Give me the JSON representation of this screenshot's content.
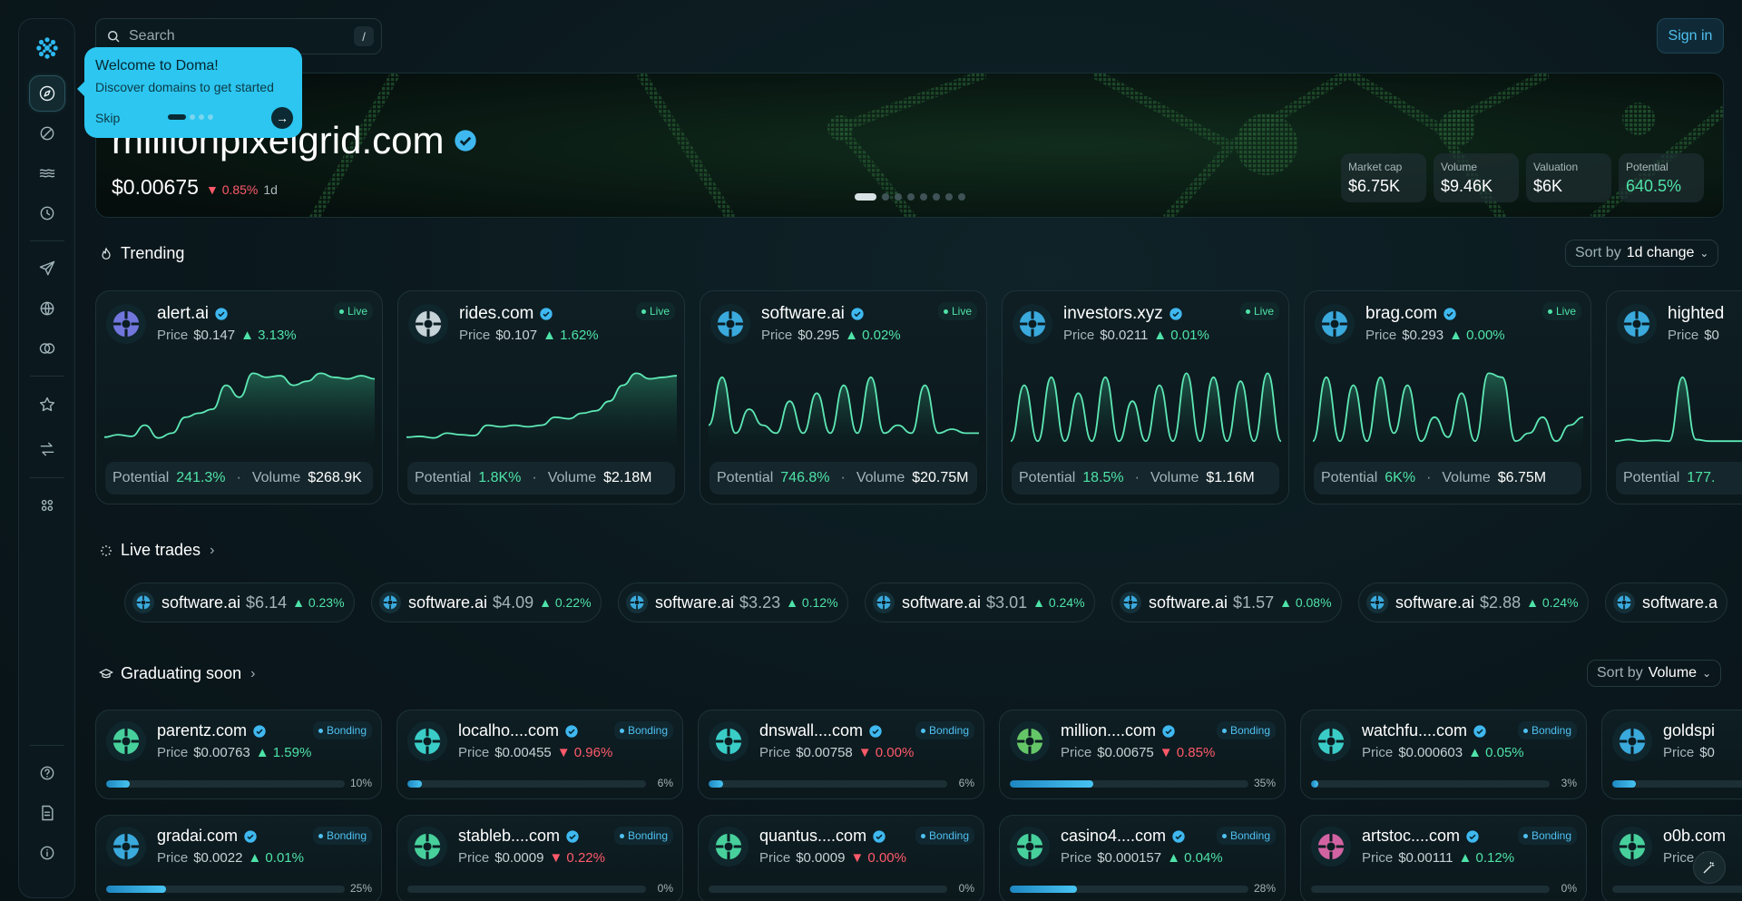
{
  "search": {
    "placeholder": "Search",
    "shortcut": "/"
  },
  "auth": {
    "signin_label": "Sign in"
  },
  "sidebar": {
    "items": [
      {
        "icon": "logo-icon"
      },
      {
        "icon": "explore-icon",
        "active": true
      },
      {
        "icon": "slash-circle-icon"
      },
      {
        "icon": "waves-icon"
      },
      {
        "icon": "clock-icon"
      },
      {
        "icon": "paper-plane-icon"
      },
      {
        "icon": "globe-icon"
      },
      {
        "icon": "coins-icon"
      },
      {
        "icon": "star-icon"
      },
      {
        "icon": "swap-icon"
      },
      {
        "icon": "apps-icon"
      },
      {
        "icon": "help-icon"
      },
      {
        "icon": "document-icon"
      },
      {
        "icon": "info-icon"
      }
    ]
  },
  "onboarding": {
    "title": "Welcome to Doma!",
    "subtitle": "Discover domains to get started",
    "skip_label": "Skip",
    "next_icon": "arrow-right-icon"
  },
  "hero": {
    "domain": "millionpixelgrid.com",
    "price": "$0.00675",
    "change": "0.85%",
    "period": "1d",
    "stats": [
      {
        "label": "Market cap",
        "value": "$6.75K"
      },
      {
        "label": "Volume",
        "value": "$9.46K"
      },
      {
        "label": "Valuation",
        "value": "$6K"
      },
      {
        "label": "Potential",
        "value": "640.5%"
      }
    ]
  },
  "trending": {
    "title": "Trending",
    "sort_prefix": "Sort by",
    "sort_value": "1d change",
    "cards": [
      {
        "name": "alert.ai",
        "price_label": "Price",
        "price": "$0.147",
        "change": "3.13%",
        "badge": "Live",
        "potential_label": "Potential",
        "potential": "241.3%",
        "volume_label": "Volume",
        "volume": "$268.9K",
        "color": "#7b7ff0"
      },
      {
        "name": "rides.com",
        "price_label": "Price",
        "price": "$0.107",
        "change": "1.62%",
        "badge": "Live",
        "potential_label": "Potential",
        "potential": "1.8K%",
        "volume_label": "Volume",
        "volume": "$2.18M",
        "color": "#d9e6ea"
      },
      {
        "name": "software.ai",
        "price_label": "Price",
        "price": "$0.295",
        "change": "0.02%",
        "badge": "Live",
        "potential_label": "Potential",
        "potential": "746.8%",
        "volume_label": "Volume",
        "volume": "$20.75M",
        "color": "#3fb8f0"
      },
      {
        "name": "investors.xyz",
        "price_label": "Price",
        "price": "$0.0211",
        "change": "0.01%",
        "badge": "Live",
        "potential_label": "Potential",
        "potential": "18.5%",
        "volume_label": "Volume",
        "volume": "$1.16M",
        "color": "#3fb8f0"
      },
      {
        "name": "brag.com",
        "price_label": "Price",
        "price": "$0.293",
        "change": "0.00%",
        "badge": "Live",
        "potential_label": "Potential",
        "potential": "6K%",
        "volume_label": "Volume",
        "volume": "$6.75M",
        "color": "#3fb8f0"
      },
      {
        "name": "highted",
        "price_label": "Price",
        "price": "$0",
        "change": "",
        "badge": "",
        "potential_label": "Potential",
        "potential": "177.",
        "volume_label": "",
        "volume": "",
        "color": "#3fb8f0"
      }
    ]
  },
  "live_trades": {
    "title": "Live trades",
    "items": [
      {
        "name": "software.ai",
        "price": "$6.14",
        "change": "0.23%"
      },
      {
        "name": "software.ai",
        "price": "$4.09",
        "change": "0.22%"
      },
      {
        "name": "software.ai",
        "price": "$3.23",
        "change": "0.12%"
      },
      {
        "name": "software.ai",
        "price": "$3.01",
        "change": "0.24%"
      },
      {
        "name": "software.ai",
        "price": "$1.57",
        "change": "0.08%"
      },
      {
        "name": "software.ai",
        "price": "$2.88",
        "change": "0.24%"
      },
      {
        "name": "software.a",
        "price": "",
        "change": ""
      }
    ]
  },
  "graduating": {
    "title": "Graduating soon",
    "sort_prefix": "Sort by",
    "sort_value": "Volume",
    "cards": [
      {
        "name": "parentz.com",
        "price": "$0.00763",
        "change": "1.59%",
        "dir": "up",
        "progress_text": "10%",
        "progress": 0.1,
        "color": "#4ee3a8"
      },
      {
        "name": "localho....com",
        "price": "$0.00455",
        "change": "0.96%",
        "dir": "down",
        "progress_text": "6%",
        "progress": 0.06,
        "color": "#3fe0d8"
      },
      {
        "name": "dnswall....com",
        "price": "$0.00758",
        "change": "0.00%",
        "dir": "down",
        "progress_text": "6%",
        "progress": 0.06,
        "color": "#3fe0d8"
      },
      {
        "name": "million....com",
        "price": "$0.00675",
        "change": "0.85%",
        "dir": "down",
        "progress_text": "35%",
        "progress": 0.35,
        "color": "#6fd86f"
      },
      {
        "name": "watchfu....com",
        "price": "$0.000603",
        "change": "0.05%",
        "dir": "up",
        "progress_text": "3%",
        "progress": 0.03,
        "color": "#3fe0d8"
      },
      {
        "name": "goldspi",
        "price": "$0",
        "change": "",
        "dir": "up",
        "progress_text": "",
        "progress": 0.1,
        "color": "#3fb8f0"
      },
      {
        "name": "gradai.com",
        "price": "$0.0022",
        "change": "0.01%",
        "dir": "up",
        "progress_text": "25%",
        "progress": 0.25,
        "color": "#3fb8f0"
      },
      {
        "name": "stableb....com",
        "price": "$0.0009",
        "change": "0.22%",
        "dir": "down",
        "progress_text": "0%",
        "progress": 0.0,
        "color": "#4ee3a8"
      },
      {
        "name": "quantus....com",
        "price": "$0.0009",
        "change": "0.00%",
        "dir": "down",
        "progress_text": "0%",
        "progress": 0.0,
        "color": "#4ee3a8"
      },
      {
        "name": "casino4....com",
        "price": "$0.000157",
        "change": "0.04%",
        "dir": "up",
        "progress_text": "28%",
        "progress": 0.28,
        "color": "#4ee3a8"
      },
      {
        "name": "artstoc....com",
        "price": "$0.00111",
        "change": "0.12%",
        "dir": "up",
        "progress_text": "0%",
        "progress": 0.0,
        "color": "#e86ab0"
      },
      {
        "name": "o0b.com",
        "price": "$",
        "change": "",
        "dir": "up",
        "progress_text": "",
        "progress": 0.0,
        "color": "#4ee3a8"
      }
    ],
    "badge": "Bonding",
    "price_label": "Price"
  },
  "colors": {
    "accent": "#2cc6f0",
    "positive": "#4ee3a8",
    "negative": "#ff5a6a"
  }
}
